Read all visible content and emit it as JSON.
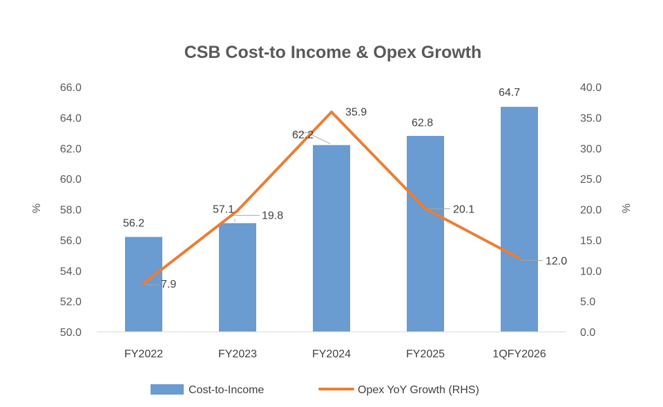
{
  "chart_data": {
    "type": "bar+line",
    "title": "CSB Cost-to Income & Opex Growth",
    "categories": [
      "FY2022",
      "FY2023",
      "FY2024",
      "FY2025",
      "1QFY2026"
    ],
    "series": [
      {
        "name": "Cost-to-Income",
        "type": "bar",
        "axis": "left",
        "color": "#6a9bd1",
        "values": [
          56.2,
          57.1,
          62.2,
          62.8,
          64.7
        ]
      },
      {
        "name": "Opex YoY Growth (RHS)",
        "type": "line",
        "axis": "right",
        "color": "#ed7d31",
        "values": [
          7.9,
          19.8,
          35.9,
          20.1,
          12.0
        ]
      }
    ],
    "bar_labels": [
      "56.2",
      "57.1",
      "62.2",
      "62.8",
      "64.7"
    ],
    "line_labels": [
      "7.9",
      "19.8",
      "35.9",
      "20.1",
      "12.0"
    ],
    "y_left": {
      "label": "%",
      "min": 50,
      "max": 66,
      "step": 2,
      "ticks": [
        "50.0",
        "52.0",
        "54.0",
        "56.0",
        "58.0",
        "60.0",
        "62.0",
        "64.0",
        "66.0"
      ]
    },
    "y_right": {
      "label": "%",
      "min": 0,
      "max": 40,
      "step": 5,
      "ticks": [
        "0.0",
        "5.0",
        "10.0",
        "15.0",
        "20.0",
        "25.0",
        "30.0",
        "35.0",
        "40.0"
      ]
    },
    "legend": {
      "position": "bottom",
      "items": [
        "Cost-to-Income",
        "Opex YoY Growth (RHS)"
      ]
    },
    "grid": false
  }
}
